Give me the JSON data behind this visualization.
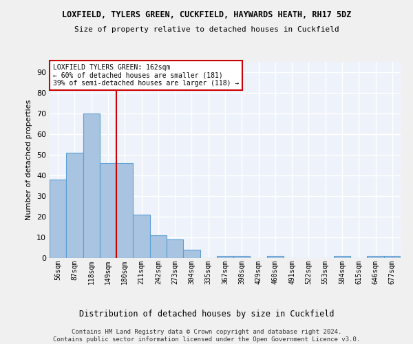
{
  "title": "LOXFIELD, TYLERS GREEN, CUCKFIELD, HAYWARDS HEATH, RH17 5DZ",
  "subtitle": "Size of property relative to detached houses in Cuckfield",
  "xlabel": "Distribution of detached houses by size in Cuckfield",
  "ylabel": "Number of detached properties",
  "bar_color": "#a8c4e0",
  "bar_edge_color": "#5a9fd4",
  "background_color": "#eef3fb",
  "grid_color": "#ffffff",
  "categories": [
    "56sqm",
    "87sqm",
    "118sqm",
    "149sqm",
    "180sqm",
    "211sqm",
    "242sqm",
    "273sqm",
    "304sqm",
    "335sqm",
    "367sqm",
    "398sqm",
    "429sqm",
    "460sqm",
    "491sqm",
    "522sqm",
    "553sqm",
    "584sqm",
    "615sqm",
    "646sqm",
    "677sqm"
  ],
  "values": [
    38,
    51,
    70,
    46,
    46,
    21,
    11,
    9,
    4,
    0,
    1,
    1,
    0,
    1,
    0,
    0,
    0,
    1,
    0,
    1,
    1
  ],
  "ylim": [
    0,
    95
  ],
  "yticks": [
    0,
    10,
    20,
    30,
    40,
    50,
    60,
    70,
    80,
    90
  ],
  "vline_x_idx": 3,
  "vline_color": "#cc0000",
  "annotation_text": "LOXFIELD TYLERS GREEN: 162sqm\n← 60% of detached houses are smaller (181)\n39% of semi-detached houses are larger (118) →",
  "annotation_box_color": "#ffffff",
  "annotation_box_edge_color": "#cc0000",
  "footer_line1": "Contains HM Land Registry data © Crown copyright and database right 2024.",
  "footer_line2": "Contains public sector information licensed under the Open Government Licence v3.0.",
  "fig_bg": "#f0f0f0"
}
